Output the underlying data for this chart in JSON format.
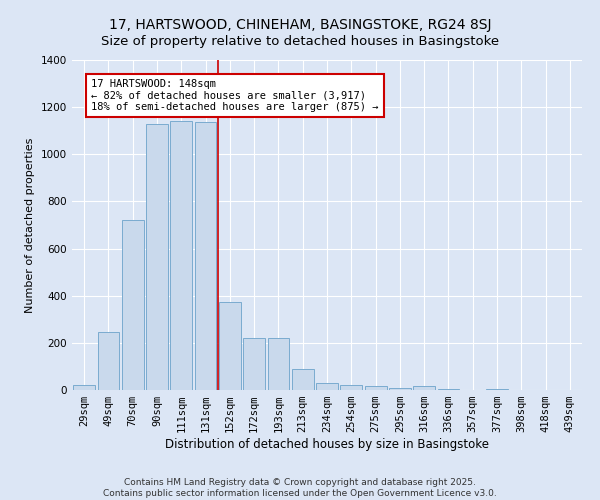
{
  "title": "17, HARTSWOOD, CHINEHAM, BASINGSTOKE, RG24 8SJ",
  "subtitle": "Size of property relative to detached houses in Basingstoke",
  "xlabel": "Distribution of detached houses by size in Basingstoke",
  "ylabel": "Number of detached properties",
  "categories": [
    "29sqm",
    "49sqm",
    "70sqm",
    "90sqm",
    "111sqm",
    "131sqm",
    "152sqm",
    "172sqm",
    "193sqm",
    "213sqm",
    "234sqm",
    "254sqm",
    "275sqm",
    "295sqm",
    "316sqm",
    "336sqm",
    "357sqm",
    "377sqm",
    "398sqm",
    "418sqm",
    "439sqm"
  ],
  "values": [
    22,
    248,
    720,
    1130,
    1140,
    1135,
    375,
    220,
    220,
    90,
    28,
    22,
    15,
    10,
    15,
    5,
    0,
    5,
    0,
    0,
    0
  ],
  "bar_color": "#c9d9ec",
  "bar_edge_color": "#7aabcf",
  "vline_x": 5.5,
  "vline_color": "#cc0000",
  "annotation_text": "17 HARTSWOOD: 148sqm\n← 82% of detached houses are smaller (3,917)\n18% of semi-detached houses are larger (875) →",
  "annotation_box_color": "#ffffff",
  "annotation_box_edge": "#cc0000",
  "ylim": [
    0,
    1400
  ],
  "yticks": [
    0,
    200,
    400,
    600,
    800,
    1000,
    1200,
    1400
  ],
  "bg_color": "#dce6f5",
  "plot_bg_color": "#dce6f5",
  "footer": "Contains HM Land Registry data © Crown copyright and database right 2025.\nContains public sector information licensed under the Open Government Licence v3.0.",
  "title_fontsize": 10,
  "xlabel_fontsize": 8.5,
  "ylabel_fontsize": 8,
  "tick_fontsize": 7.5,
  "annotation_fontsize": 7.5,
  "footer_fontsize": 6.5
}
